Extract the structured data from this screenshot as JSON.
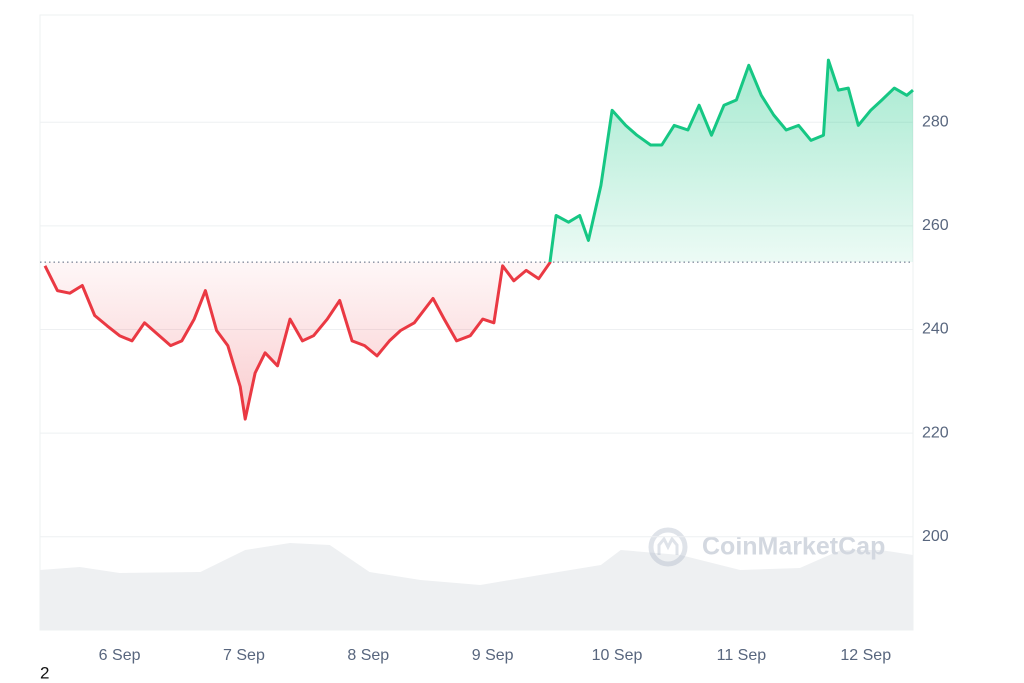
{
  "chart_data": {
    "type": "line",
    "x": [
      5.4,
      5.5,
      5.6,
      5.7,
      5.8,
      5.9,
      6.0,
      6.1,
      6.2,
      6.3,
      6.41,
      6.5,
      6.6,
      6.69,
      6.78,
      6.87,
      6.97,
      7.01,
      7.09,
      7.17,
      7.27,
      7.37,
      7.47,
      7.56,
      7.67,
      7.77,
      7.87,
      7.97,
      8.07,
      8.17,
      8.26,
      8.37,
      8.52,
      8.61,
      8.71,
      8.82,
      8.92,
      9.01,
      9.08,
      9.17,
      9.27,
      9.37,
      9.46,
      9.51,
      9.61,
      9.7,
      9.77,
      9.87,
      9.96,
      10.07,
      10.16,
      10.27,
      10.36,
      10.46,
      10.57,
      10.66,
      10.76,
      10.86,
      10.96,
      11.06,
      11.16,
      11.26,
      11.36,
      11.46,
      11.56,
      11.66,
      11.7,
      11.78,
      11.86,
      11.94,
      12.04,
      12.13,
      12.23,
      12.33,
      12.38
    ],
    "values": [
      252.3,
      247.5,
      247,
      248.5,
      242.7,
      240.7,
      238.8,
      237.8,
      241.3,
      239.2,
      236.9,
      237.8,
      242,
      247.5,
      239.8,
      236.9,
      229,
      222.7,
      231.6,
      235.5,
      233,
      242,
      237.8,
      238.8,
      242,
      245.6,
      237.8,
      236.9,
      234.9,
      237.8,
      239.8,
      241.3,
      246,
      242,
      237.8,
      238.8,
      242,
      241.3,
      252.3,
      249.4,
      251.4,
      249.8,
      252.9,
      262,
      260.7,
      262,
      257.2,
      267.8,
      282.3,
      279.4,
      277.5,
      275.6,
      275.6,
      279.4,
      278.5,
      283.3,
      277.5,
      283.3,
      284.3,
      291,
      285.2,
      281.4,
      278.5,
      279.4,
      276.5,
      277.5,
      292,
      286.2,
      286.6,
      279.4,
      282.3,
      284.3,
      286.6,
      285.2,
      286.2
    ],
    "baseline": 253,
    "up_color": "#16c784",
    "down_color": "#ea3943",
    "volume": {
      "color": "#eef0f2",
      "x": [
        5.36,
        5.68,
        6.0,
        6.65,
        7.01,
        7.37,
        7.69,
        8.01,
        8.42,
        8.9,
        9.38,
        9.87,
        10.03,
        10.51,
        10.99,
        11.47,
        11.8,
        12.12,
        12.38
      ],
      "values": [
        60,
        63,
        57,
        58,
        80,
        87,
        85,
        58,
        50,
        45,
        55,
        65,
        80,
        75,
        60,
        62,
        80,
        80,
        75
      ]
    },
    "watermark": "CoinMarketCap",
    "ylim": [
      182,
      300.7
    ],
    "yticks": [
      200,
      220,
      240,
      260,
      280
    ],
    "xlim": [
      5.36,
      12.38
    ],
    "xticks": [
      {
        "value": 6,
        "label": "6 Sep"
      },
      {
        "value": 7,
        "label": "7 Sep"
      },
      {
        "value": 8,
        "label": "8 Sep"
      },
      {
        "value": 9,
        "label": "9 Sep"
      },
      {
        "value": 10,
        "label": "10 Sep"
      },
      {
        "value": 11,
        "label": "11 Sep"
      },
      {
        "value": 12,
        "label": "12 Sep"
      }
    ],
    "grid": true
  },
  "footer": "2"
}
